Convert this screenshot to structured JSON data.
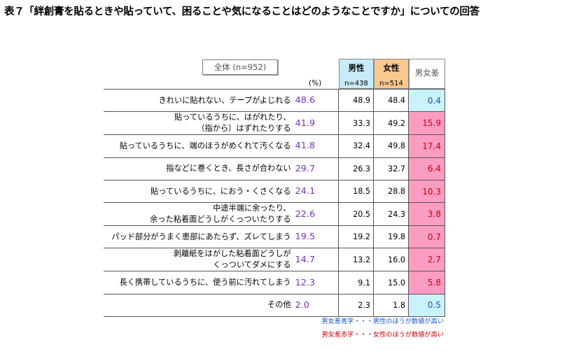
{
  "title": "表７「絆創膏を貼るときや貼っていて、困ることや気になることはどのようなことですか」についての回答",
  "total_label": "全体 (n=952)",
  "pct_unit": "(%)",
  "headers": {
    "male": "男性",
    "male_n": "n=438",
    "female": "女性",
    "female_n": "n=514",
    "diff": "男女差"
  },
  "colors": {
    "male_bg": "#c7ecf7",
    "female_bg": "#f9c88e",
    "diff_blue_bg": "#c9f3fb",
    "diff_red_bg": "#fb9cc3",
    "diff_blue_text": "#1a4fd0",
    "diff_red_text": "#d00000",
    "total_text": "#7b2fbe"
  },
  "rows": [
    {
      "label1": "きれいに貼れない、テープがよじれる",
      "label2": "",
      "total": "48.6",
      "male": "48.9",
      "female": "48.4",
      "diff": "0.4",
      "diff_color": "blue"
    },
    {
      "label1": "貼っているうちに、はがれたり、",
      "label2": "（指から）はずれたりする",
      "total": "41.9",
      "male": "33.3",
      "female": "49.2",
      "diff": "15.9",
      "diff_color": "red"
    },
    {
      "label1": "貼っているうちに、端のほうがめくれて汚くなる",
      "label2": "",
      "total": "41.8",
      "male": "32.4",
      "female": "49.8",
      "diff": "17.4",
      "diff_color": "red"
    },
    {
      "label1": "指などに巻くとき、長さが合わない",
      "label2": "",
      "total": "29.7",
      "male": "26.3",
      "female": "32.7",
      "diff": "6.4",
      "diff_color": "red"
    },
    {
      "label1": "貼っているうちに、におう・くさくなる",
      "label2": "",
      "total": "24.1",
      "male": "18.5",
      "female": "28.8",
      "diff": "10.3",
      "diff_color": "red"
    },
    {
      "label1": "中途半端に余ったり、",
      "label2": "余った粘着面どうしがくっついたりする",
      "total": "22.6",
      "male": "20.5",
      "female": "24.3",
      "diff": "3.8",
      "diff_color": "red"
    },
    {
      "label1": "パッド部分がうまく患部にあたらず、ズレてしまう",
      "label2": "",
      "total": "19.5",
      "male": "19.2",
      "female": "19.8",
      "diff": "0.7",
      "diff_color": "red"
    },
    {
      "label1": "剥離紙をはがした粘着面どうしが",
      "label2": "くっついてダメにする",
      "total": "14.7",
      "male": "13.2",
      "female": "16.0",
      "diff": "2.7",
      "diff_color": "red"
    },
    {
      "label1": "長く携帯しているうちに、使う前に汚れてしまう",
      "label2": "",
      "total": "12.3",
      "male": "9.1",
      "female": "15.0",
      "diff": "5.8",
      "diff_color": "red"
    },
    {
      "label1": "その他",
      "label2": "",
      "total": "2.0",
      "male": "2.3",
      "female": "1.8",
      "diff": "0.5",
      "diff_color": "blue"
    }
  ],
  "notes": {
    "blue": "男女差青字・・・男性のほうが数値が高い",
    "red": "男女差赤字・・・女性のほうが数値が高い"
  }
}
